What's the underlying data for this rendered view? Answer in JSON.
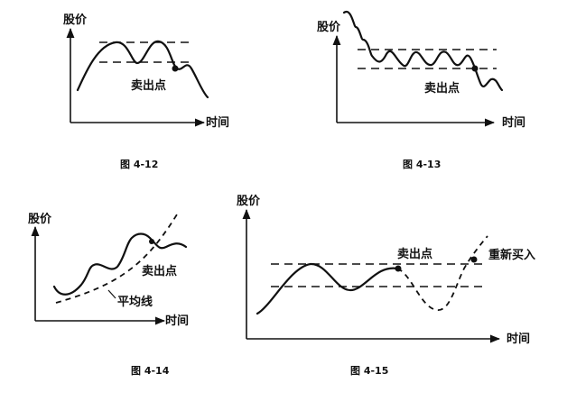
{
  "figures": [
    {
      "caption": "图 4-12",
      "y_axis_label": "股价",
      "x_axis_label": "时间",
      "annotations": [
        "卖出点"
      ]
    },
    {
      "caption": "图 4-13",
      "y_axis_label": "股价",
      "x_axis_label": "时间",
      "annotations": [
        "卖出点"
      ]
    },
    {
      "caption": "图 4-14",
      "y_axis_label": "股价",
      "x_axis_label": "时间",
      "annotations": [
        "卖出点",
        "平均线"
      ]
    },
    {
      "caption": "图 4-15",
      "y_axis_label": "股价",
      "x_axis_label": "时间",
      "annotations": [
        "卖出点",
        "重新买入"
      ]
    }
  ]
}
